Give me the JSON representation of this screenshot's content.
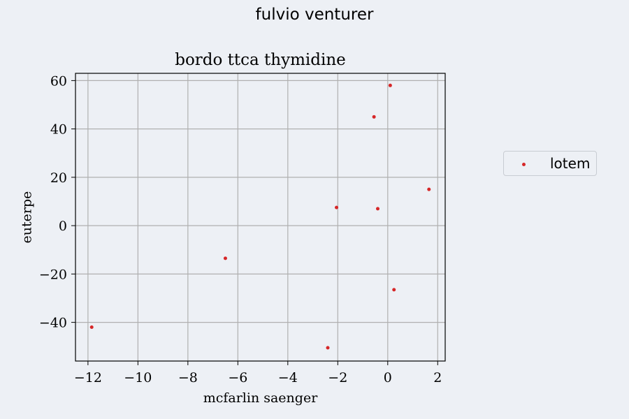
{
  "suptitle": "fulvio venturer",
  "chart_data": {
    "type": "scatter",
    "title": "bordo ttca thymidine",
    "xlabel": "mcfarlin saenger",
    "ylabel": "euterpe",
    "xlim": [
      -12.5,
      2.3
    ],
    "ylim": [
      -56,
      63
    ],
    "xticks": [
      -12,
      -10,
      -8,
      -6,
      -4,
      -2,
      0,
      2
    ],
    "xtick_labels": [
      "−12",
      "−10",
      "−8",
      "−6",
      "−4",
      "−2",
      "0",
      "2"
    ],
    "yticks": [
      -40,
      -20,
      0,
      20,
      40,
      60
    ],
    "ytick_labels": [
      "−40",
      "−20",
      "0",
      "20",
      "40",
      "60"
    ],
    "grid": true,
    "legend_position": "right",
    "series": [
      {
        "name": "lotem",
        "color": "#d62728",
        "x": [
          0.1,
          -0.55,
          1.65,
          -2.05,
          -0.4,
          -6.5,
          0.25,
          -11.85,
          -2.4
        ],
        "y": [
          58,
          45,
          15,
          7.5,
          7,
          -13.5,
          -26.5,
          -42,
          -50.5
        ]
      }
    ]
  }
}
